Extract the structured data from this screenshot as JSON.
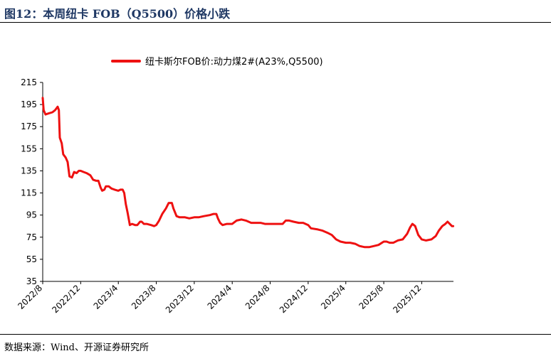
{
  "figure": {
    "title": "图12：本周纽卡 FOB（Q5500）价格小跌",
    "source": "数据来源：Wind、开源证券研究所"
  },
  "colors": {
    "line": "#ee1111",
    "title": "#1f3864",
    "axis": "#000000"
  },
  "chart_data": {
    "type": "line",
    "title": "",
    "xlabel": "",
    "ylabel": "",
    "ylim": [
      35,
      215
    ],
    "yticks": [
      35,
      55,
      75,
      95,
      115,
      135,
      155,
      175,
      195,
      215
    ],
    "ytick_labels": [
      "35",
      "55",
      "75",
      "95",
      "115",
      "135",
      "155",
      "175",
      "195",
      "215"
    ],
    "xlim": [
      "2022-08-01",
      "2026-03-13"
    ],
    "xtick_dates": [
      "2022-08-01",
      "2022-12-01",
      "2023-04-01",
      "2023-08-01",
      "2023-12-01",
      "2024-04-01",
      "2024-08-01",
      "2024-12-01",
      "2025-04-01",
      "2025-08-01",
      "2025-12-01"
    ],
    "xtick_labels": [
      "2022/8",
      "2022/12",
      "2023/4",
      "2023/8",
      "2023/12",
      "2024/4",
      "2024/8",
      "2024/12",
      "2025/4",
      "2025/8",
      "2025/12"
    ],
    "grid": false,
    "legend": "top",
    "series": [
      {
        "name": "纽卡斯尔FOB价:动力煤2#(A23%,Q5500)",
        "points": [
          [
            "2022-08-01",
            201
          ],
          [
            "2022-08-04",
            190
          ],
          [
            "2022-08-10",
            186
          ],
          [
            "2022-08-20",
            187
          ],
          [
            "2022-09-01",
            188
          ],
          [
            "2022-09-10",
            190
          ],
          [
            "2022-09-18",
            193
          ],
          [
            "2022-09-22",
            190
          ],
          [
            "2022-09-25",
            165
          ],
          [
            "2022-10-01",
            160
          ],
          [
            "2022-10-06",
            150
          ],
          [
            "2022-10-14",
            147
          ],
          [
            "2022-10-20",
            143
          ],
          [
            "2022-10-26",
            130
          ],
          [
            "2022-11-03",
            129
          ],
          [
            "2022-11-10",
            134
          ],
          [
            "2022-11-18",
            133
          ],
          [
            "2022-11-25",
            135
          ],
          [
            "2022-12-01",
            135
          ],
          [
            "2022-12-10",
            134
          ],
          [
            "2022-12-20",
            133
          ],
          [
            "2023-01-01",
            131
          ],
          [
            "2023-01-10",
            127
          ],
          [
            "2023-01-20",
            126
          ],
          [
            "2023-01-27",
            126
          ],
          [
            "2023-02-03",
            120
          ],
          [
            "2023-02-08",
            117
          ],
          [
            "2023-02-15",
            118
          ],
          [
            "2023-02-20",
            121
          ],
          [
            "2023-03-01",
            121
          ],
          [
            "2023-03-10",
            119
          ],
          [
            "2023-03-20",
            118
          ],
          [
            "2023-04-01",
            117
          ],
          [
            "2023-04-08",
            118
          ],
          [
            "2023-04-15",
            118
          ],
          [
            "2023-04-20",
            115
          ],
          [
            "2023-04-25",
            105
          ],
          [
            "2023-05-01",
            97
          ],
          [
            "2023-05-08",
            86
          ],
          [
            "2023-05-15",
            87
          ],
          [
            "2023-05-25",
            86
          ],
          [
            "2023-06-01",
            86
          ],
          [
            "2023-06-10",
            89
          ],
          [
            "2023-06-15",
            89
          ],
          [
            "2023-06-22",
            87
          ],
          [
            "2023-07-01",
            87
          ],
          [
            "2023-07-15",
            86
          ],
          [
            "2023-07-25",
            85
          ],
          [
            "2023-08-01",
            86
          ],
          [
            "2023-08-10",
            90
          ],
          [
            "2023-08-20",
            96
          ],
          [
            "2023-09-01",
            101
          ],
          [
            "2023-09-10",
            106
          ],
          [
            "2023-09-20",
            106
          ],
          [
            "2023-09-25",
            101
          ],
          [
            "2023-10-05",
            94
          ],
          [
            "2023-10-15",
            93
          ],
          [
            "2023-11-01",
            93
          ],
          [
            "2023-11-15",
            92
          ],
          [
            "2023-12-01",
            93
          ],
          [
            "2023-12-15",
            93
          ],
          [
            "2024-01-01",
            94
          ],
          [
            "2024-01-20",
            95
          ],
          [
            "2024-02-01",
            96
          ],
          [
            "2024-02-10",
            96
          ],
          [
            "2024-02-15",
            92
          ],
          [
            "2024-02-22",
            88
          ],
          [
            "2024-03-01",
            86
          ],
          [
            "2024-03-15",
            87
          ],
          [
            "2024-04-01",
            87
          ],
          [
            "2024-04-15",
            90
          ],
          [
            "2024-05-01",
            91
          ],
          [
            "2024-05-15",
            90
          ],
          [
            "2024-06-01",
            88
          ],
          [
            "2024-06-15",
            88
          ],
          [
            "2024-07-01",
            88
          ],
          [
            "2024-07-15",
            87
          ],
          [
            "2024-08-01",
            87
          ],
          [
            "2024-08-15",
            87
          ],
          [
            "2024-09-01",
            87
          ],
          [
            "2024-09-10",
            87
          ],
          [
            "2024-09-20",
            90
          ],
          [
            "2024-10-01",
            90
          ],
          [
            "2024-10-15",
            89
          ],
          [
            "2024-11-01",
            88
          ],
          [
            "2024-11-15",
            88
          ],
          [
            "2024-12-01",
            86
          ],
          [
            "2024-12-10",
            83
          ],
          [
            "2025-01-01",
            82
          ],
          [
            "2025-01-15",
            81
          ],
          [
            "2025-02-01",
            79
          ],
          [
            "2025-02-15",
            77
          ],
          [
            "2025-03-01",
            73
          ],
          [
            "2025-03-15",
            71
          ],
          [
            "2025-04-01",
            70
          ],
          [
            "2025-04-15",
            70
          ],
          [
            "2025-05-01",
            69
          ],
          [
            "2025-05-15",
            67
          ],
          [
            "2025-06-01",
            66
          ],
          [
            "2025-06-15",
            66
          ],
          [
            "2025-07-01",
            67
          ],
          [
            "2025-07-15",
            68
          ],
          [
            "2025-08-01",
            71
          ],
          [
            "2025-08-10",
            71
          ],
          [
            "2025-08-20",
            70
          ],
          [
            "2025-09-01",
            70
          ],
          [
            "2025-09-15",
            72
          ],
          [
            "2025-10-01",
            73
          ],
          [
            "2025-10-15",
            78
          ],
          [
            "2025-10-25",
            84
          ],
          [
            "2025-11-01",
            87
          ],
          [
            "2025-11-10",
            85
          ],
          [
            "2025-11-20",
            77
          ],
          [
            "2025-12-01",
            73
          ],
          [
            "2025-12-15",
            72
          ],
          [
            "2026-01-01",
            73
          ],
          [
            "2026-01-15",
            76
          ],
          [
            "2026-01-25",
            81
          ],
          [
            "2026-02-05",
            85
          ],
          [
            "2026-02-15",
            87
          ],
          [
            "2026-02-22",
            89
          ],
          [
            "2026-03-01",
            87
          ],
          [
            "2026-03-08",
            85
          ],
          [
            "2026-03-12",
            85
          ]
        ]
      }
    ]
  }
}
